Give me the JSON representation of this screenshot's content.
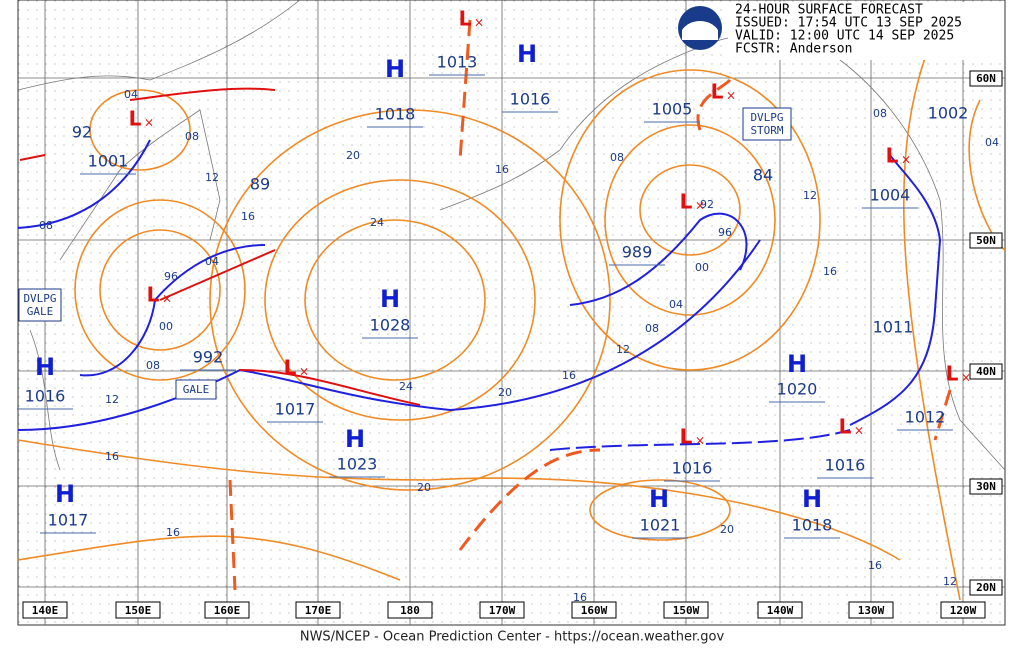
{
  "header": {
    "lines": [
      "24-HOUR SURFACE FORECAST",
      "ISSUED: 17:54 UTC 13 SEP 2025",
      "VALID:  12:00 UTC 14 SEP 2025",
      "FCSTR:  Anderson"
    ]
  },
  "footer": "NWS/NCEP - Ocean Prediction Center - https://ocean.weather.gov",
  "longitudes": [
    "140E",
    "150E",
    "160E",
    "170E",
    "180",
    "170W",
    "160W",
    "150W",
    "140W",
    "130W",
    "120W"
  ],
  "latitudes": [
    "60N",
    "50N",
    "40N",
    "30N",
    "20N"
  ],
  "pressure_centers": [
    {
      "symbol": "H",
      "value": "1018"
    },
    {
      "symbol": "L",
      "value": "1013"
    },
    {
      "symbol": "H",
      "value": "1016"
    },
    {
      "symbol": "L",
      "value": "1005"
    },
    {
      "symbol": "L",
      "value": "1001"
    },
    {
      "symbol": "L",
      "value": "989"
    },
    {
      "symbol": "L",
      "value": "992"
    },
    {
      "symbol": "H",
      "value": "1028"
    },
    {
      "symbol": "L",
      "value": "1017"
    },
    {
      "symbol": "H",
      "value": "1023"
    },
    {
      "symbol": "H",
      "value": "1016"
    },
    {
      "symbol": "H",
      "value": "1017"
    },
    {
      "symbol": "H",
      "value": "1020"
    },
    {
      "symbol": "L",
      "value": "1004"
    },
    {
      "symbol": "L",
      "value": "1012"
    },
    {
      "symbol": "L",
      "value": "1016"
    },
    {
      "symbol": "L",
      "value": "1016"
    },
    {
      "symbol": "H",
      "value": "1021"
    },
    {
      "symbol": "H",
      "value": "1018"
    }
  ],
  "other_pressure_labels": [
    "1002",
    "1011",
    "92",
    "89",
    "84",
    "92",
    "96",
    "00",
    "96",
    "04",
    "00"
  ],
  "isobar_labels": [
    "04",
    "08",
    "12",
    "16",
    "08",
    "08",
    "12",
    "16",
    "16",
    "20",
    "24",
    "24",
    "20",
    "16",
    "12",
    "08",
    "04",
    "20",
    "16",
    "08",
    "12",
    "16",
    "08",
    "04",
    "20",
    "16",
    "12",
    "16"
  ],
  "warnings": [
    {
      "lines": [
        "DVLPG",
        "STORM"
      ]
    },
    {
      "lines": [
        "DVLPG",
        "GALE"
      ]
    },
    {
      "lines": [
        "GALE"
      ]
    }
  ]
}
